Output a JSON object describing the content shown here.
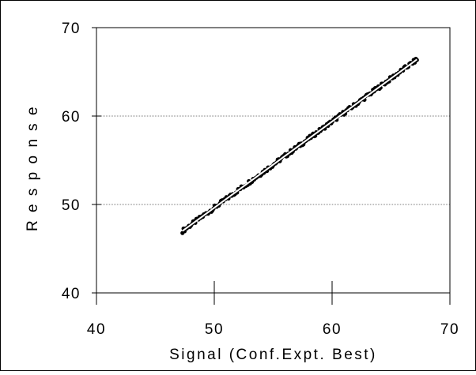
{
  "chart_data": {
    "type": "scatter",
    "title": "",
    "xlabel": "Signal (Conf.Expt. Best)",
    "ylabel": "R e s p o n s e",
    "xlim": [
      40,
      70
    ],
    "ylim": [
      40,
      70
    ],
    "xticks": [
      "40",
      "50",
      "60",
      "70"
    ],
    "yticks": [
      "40",
      "50",
      "60",
      "70"
    ],
    "grid": "horizontal dotted",
    "legend": "none",
    "colors": {
      "points": "#000000",
      "fit_line": "#ffffff",
      "grid": "#808080",
      "frame": "#000000"
    },
    "series": [
      {
        "x_range": [
          47.3,
          67.2
        ],
        "y_range": [
          47.0,
          66.4
        ],
        "marker": "dot",
        "fit": "linear"
      }
    ]
  }
}
